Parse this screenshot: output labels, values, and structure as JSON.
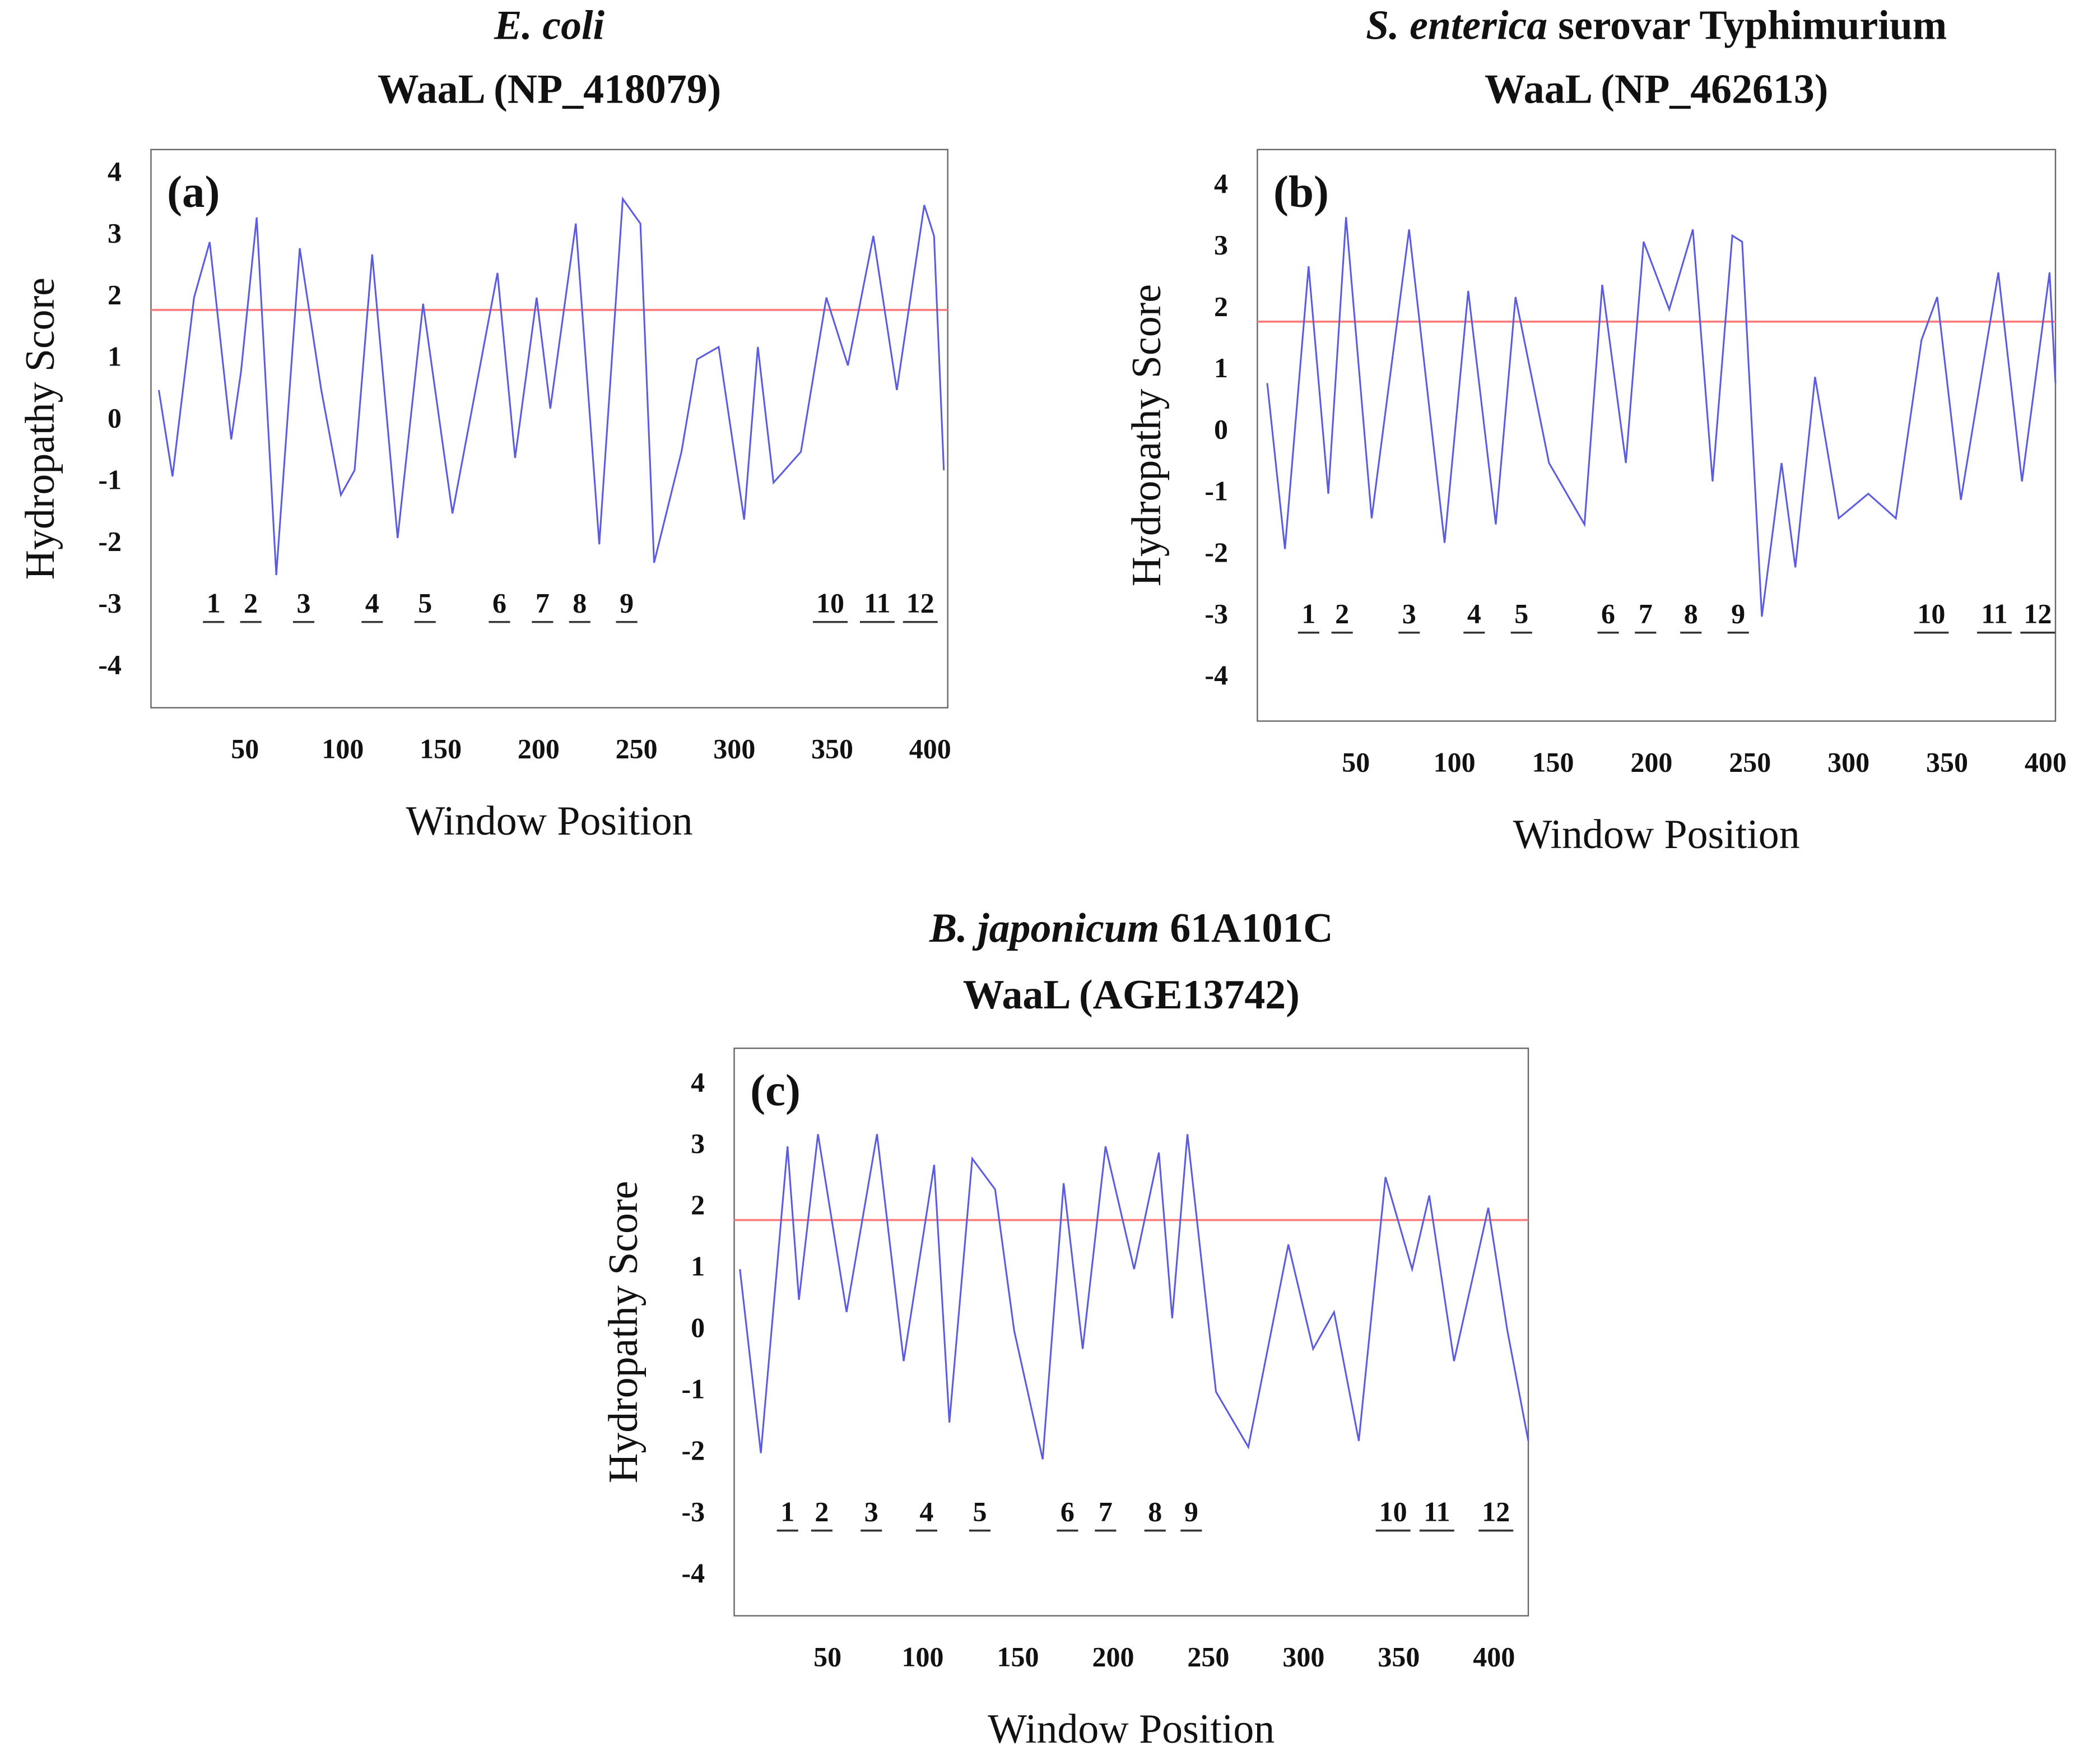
{
  "chart_data": [
    {
      "type": "line",
      "title": [
        {
          "text": "E. coli",
          "italic": true
        }
      ],
      "subtitle": "WaaL (NP_418079)",
      "panel_label": "(a)",
      "xlabel": "Window Position",
      "ylabel": "Hydropathy Score",
      "xlim": [
        2,
        409
      ],
      "ylim": [
        -4.65,
        4.4
      ],
      "xticks": [
        50,
        100,
        150,
        200,
        250,
        300,
        350,
        400
      ],
      "yticks": [
        -4,
        -3,
        -2,
        -1,
        0,
        1,
        2,
        3,
        4
      ],
      "color": "#5c5ce0",
      "threshold": {
        "value": 1.8,
        "color": "#ff7a7a"
      },
      "x": [
        6,
        13,
        24,
        32,
        43,
        48,
        56,
        66,
        78,
        89,
        99,
        106,
        115,
        128,
        141,
        156,
        179,
        188,
        199,
        206,
        219,
        231,
        243,
        252,
        259,
        273,
        281,
        292,
        305,
        312,
        320,
        334,
        347,
        358,
        371,
        383,
        397,
        402,
        407
      ],
      "values": [
        0.5,
        -0.9,
        2.0,
        2.9,
        -0.3,
        0.8,
        3.3,
        -2.5,
        2.8,
        0.5,
        -1.2,
        -0.8,
        2.7,
        -1.9,
        1.9,
        -1.5,
        2.4,
        -0.6,
        2.0,
        0.2,
        3.2,
        -2.0,
        3.6,
        3.2,
        -2.3,
        -0.5,
        1.0,
        1.2,
        -1.6,
        1.2,
        -1.0,
        -0.5,
        2.0,
        0.9,
        3.0,
        0.5,
        3.5,
        3.0,
        -0.8
      ],
      "annotations": [
        {
          "label": "1",
          "x": 34,
          "y": -3
        },
        {
          "label": "2",
          "x": 53,
          "y": -3
        },
        {
          "label": "3",
          "x": 80,
          "y": -3
        },
        {
          "label": "4",
          "x": 115,
          "y": -3
        },
        {
          "label": "5",
          "x": 142,
          "y": -3
        },
        {
          "label": "6",
          "x": 180,
          "y": -3
        },
        {
          "label": "7",
          "x": 202,
          "y": -3
        },
        {
          "label": "8",
          "x": 221,
          "y": -3
        },
        {
          "label": "9",
          "x": 245,
          "y": -3
        },
        {
          "label": "10",
          "x": 349,
          "y": -3
        },
        {
          "label": "11",
          "x": 373,
          "y": -3
        },
        {
          "label": "12",
          "x": 395,
          "y": -3
        }
      ]
    },
    {
      "type": "line",
      "title": [
        {
          "text": "S. enterica",
          "italic": true
        },
        {
          "text": "serovar Typhimurium",
          "italic": false
        }
      ],
      "subtitle": "WaaL (NP_462613)",
      "panel_label": "(b)",
      "xlabel": "Window Position",
      "ylabel": "Hydropathy Score",
      "xlim": [
        0,
        405
      ],
      "ylim": [
        -4.7,
        4.6
      ],
      "xticks": [
        50,
        100,
        150,
        200,
        250,
        300,
        350,
        400
      ],
      "yticks": [
        -4,
        -3,
        -2,
        -1,
        0,
        1,
        2,
        3,
        4
      ],
      "color": "#5c5ce0",
      "threshold": {
        "value": 1.8,
        "color": "#ff7a7a"
      },
      "x": [
        5,
        14,
        26,
        36,
        45,
        58,
        77,
        95,
        107,
        121,
        131,
        148,
        166,
        175,
        187,
        196,
        209,
        221,
        231,
        241,
        246,
        256,
        266,
        273,
        283,
        295,
        310,
        324,
        337,
        345,
        357,
        376,
        388,
        402,
        405
      ],
      "values": [
        0.8,
        -1.9,
        2.7,
        -1.0,
        3.5,
        -1.4,
        3.3,
        -1.8,
        2.3,
        -1.5,
        2.2,
        -0.5,
        -1.5,
        2.4,
        -0.5,
        3.1,
        2.0,
        3.3,
        -0.8,
        3.2,
        3.1,
        -3.0,
        -0.5,
        -2.2,
        0.9,
        -1.4,
        -1.0,
        -1.4,
        1.5,
        2.2,
        -1.1,
        2.6,
        -0.8,
        2.6,
        0.8
      ],
      "annotations": [
        {
          "label": "1",
          "x": 26,
          "y": -3
        },
        {
          "label": "2",
          "x": 43,
          "y": -3
        },
        {
          "label": "3",
          "x": 77,
          "y": -3
        },
        {
          "label": "4",
          "x": 110,
          "y": -3
        },
        {
          "label": "5",
          "x": 134,
          "y": -3
        },
        {
          "label": "6",
          "x": 178,
          "y": -3
        },
        {
          "label": "7",
          "x": 197,
          "y": -3
        },
        {
          "label": "8",
          "x": 220,
          "y": -3
        },
        {
          "label": "9",
          "x": 244,
          "y": -3
        },
        {
          "label": "10",
          "x": 342,
          "y": -3
        },
        {
          "label": "11",
          "x": 374,
          "y": -3
        },
        {
          "label": "12",
          "x": 396,
          "y": -3
        }
      ]
    },
    {
      "type": "line",
      "title": [
        {
          "text": "B. japonicum",
          "italic": true
        },
        {
          "text": "61A101C",
          "italic": false
        }
      ],
      "subtitle": "WaaL (AGE13742)",
      "panel_label": "(c)",
      "xlabel": "Window Position",
      "ylabel": "Hydropathy Score",
      "xlim": [
        1,
        418
      ],
      "ylim": [
        -4.65,
        4.6
      ],
      "xticks": [
        50,
        100,
        150,
        200,
        250,
        300,
        350,
        400
      ],
      "yticks": [
        -4,
        -3,
        -2,
        -1,
        0,
        1,
        2,
        3,
        4
      ],
      "color": "#5c5ce0",
      "threshold": {
        "value": 1.8,
        "color": "#ff7a7a"
      },
      "x": [
        4,
        15,
        29,
        35,
        45,
        60,
        76,
        90,
        106,
        114,
        126,
        138,
        148,
        163,
        174,
        184,
        196,
        211,
        224,
        231,
        239,
        254,
        271,
        292,
        305,
        316,
        329,
        343,
        357,
        366,
        379,
        397,
        407,
        418
      ],
      "values": [
        1.0,
        -2.0,
        3.0,
        0.5,
        3.2,
        0.3,
        3.2,
        -0.5,
        2.7,
        -1.5,
        2.8,
        2.3,
        0.0,
        -2.1,
        2.4,
        -0.3,
        3.0,
        1.0,
        2.9,
        0.2,
        3.2,
        -1.0,
        -1.9,
        1.4,
        -0.3,
        0.3,
        -1.8,
        2.5,
        1.0,
        2.2,
        -0.5,
        2.0,
        0.0,
        -1.8
      ],
      "annotations": [
        {
          "label": "1",
          "x": 29,
          "y": -3
        },
        {
          "label": "2",
          "x": 47,
          "y": -3
        },
        {
          "label": "3",
          "x": 73,
          "y": -3
        },
        {
          "label": "4",
          "x": 102,
          "y": -3
        },
        {
          "label": "5",
          "x": 130,
          "y": -3
        },
        {
          "label": "6",
          "x": 176,
          "y": -3
        },
        {
          "label": "7",
          "x": 196,
          "y": -3
        },
        {
          "label": "8",
          "x": 222,
          "y": -3
        },
        {
          "label": "9",
          "x": 241,
          "y": -3
        },
        {
          "label": "10",
          "x": 347,
          "y": -3
        },
        {
          "label": "11",
          "x": 370,
          "y": -3
        },
        {
          "label": "12",
          "x": 401,
          "y": -3
        }
      ]
    }
  ]
}
